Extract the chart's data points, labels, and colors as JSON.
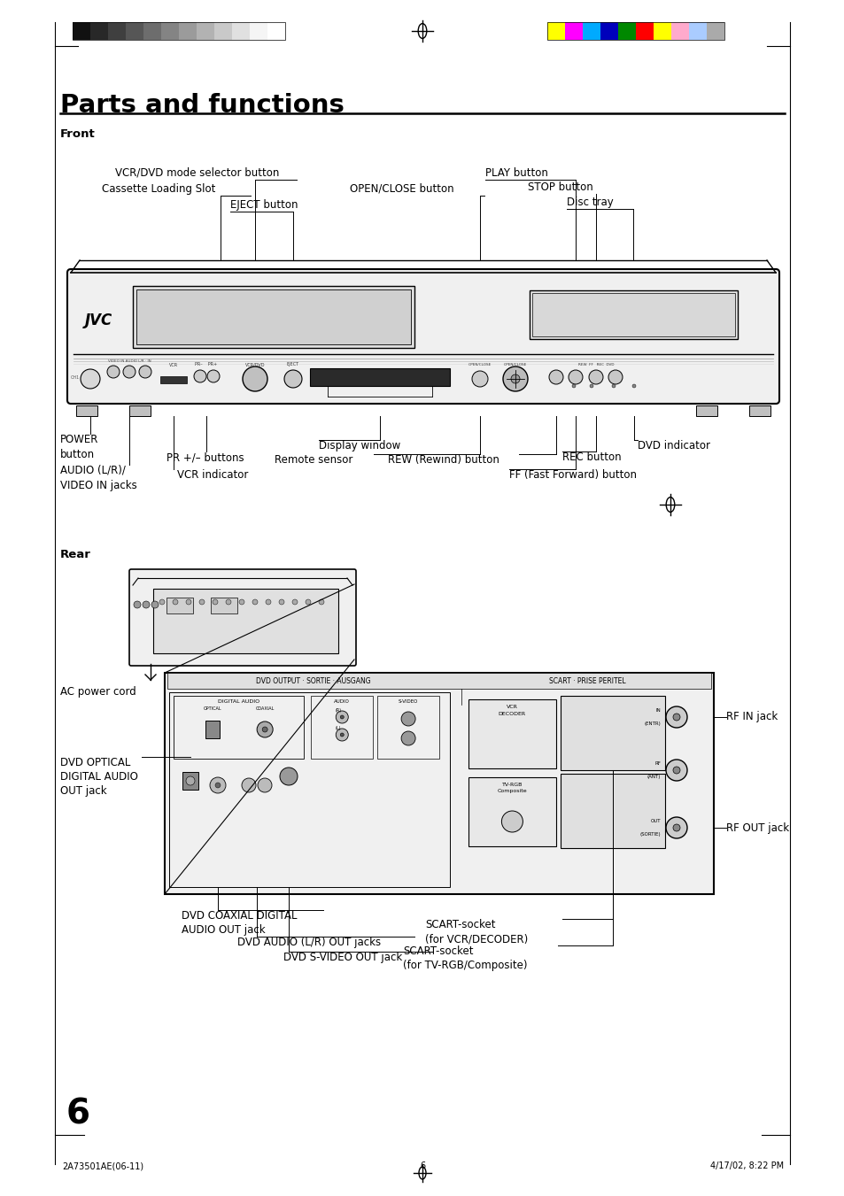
{
  "title": "Parts and functions",
  "page_number": "6",
  "footer_left": "2A73501AE(06-11)",
  "footer_center": "6",
  "footer_right": "4/17/02, 8:22 PM",
  "front_label": "Front",
  "rear_label": "Rear",
  "bg_color": "#ffffff",
  "text_color": "#000000",
  "color_bars_left": [
    "#111111",
    "#282828",
    "#3f3f3f",
    "#565656",
    "#6d6d6d",
    "#848484",
    "#9b9b9b",
    "#b2b2b2",
    "#c9c9c9",
    "#e0e0e0",
    "#f5f5f5",
    "#ffffff"
  ],
  "color_bars_right": [
    "#ffff00",
    "#ff00ff",
    "#00aaff",
    "#0000bb",
    "#008800",
    "#ff0000",
    "#ffff00",
    "#ffaacc",
    "#aaccff",
    "#aaaaaa"
  ]
}
